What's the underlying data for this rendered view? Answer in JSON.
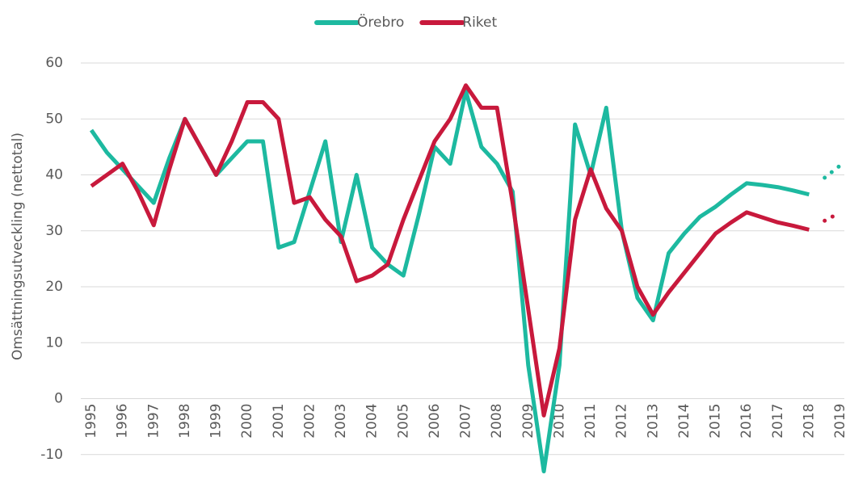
{
  "chart_data": {
    "type": "line",
    "y_label": "Omsättningsutveckling (nettotal)",
    "categories": [
      "1995",
      null,
      "1996",
      null,
      "1997",
      null,
      "1998",
      null,
      "1999",
      null,
      "2000",
      null,
      "2001",
      null,
      "2002",
      null,
      "2003",
      null,
      "2004",
      null,
      "2005",
      null,
      "2006",
      null,
      "2007",
      null,
      "2008",
      null,
      "2009",
      null,
      "2010",
      null,
      "2011",
      null,
      "2012",
      null,
      "2013",
      null,
      "2014",
      null,
      "2015",
      null,
      "2016",
      null,
      "2017",
      null,
      "2018",
      null,
      "2019"
    ],
    "series": [
      {
        "name": "Örebro",
        "color": "#1db9a0",
        "values": [
          48,
          44,
          41,
          38,
          35,
          43,
          50,
          45,
          40,
          43,
          46,
          46,
          27,
          28,
          37,
          46,
          28,
          40,
          27,
          24,
          22,
          33,
          45,
          42,
          55,
          45,
          42,
          37,
          6,
          -13,
          6,
          49,
          40,
          52,
          30,
          18,
          14,
          26,
          29.5,
          32.5,
          34.3,
          36.5,
          38.5,
          38.2,
          37.8,
          37.2,
          36.5,
          null,
          null
        ],
        "forecast": [
          null,
          null,
          null,
          null,
          null,
          null,
          null,
          null,
          null,
          null,
          null,
          null,
          null,
          null,
          null,
          null,
          null,
          null,
          null,
          null,
          null,
          null,
          null,
          null,
          null,
          null,
          null,
          null,
          null,
          null,
          null,
          null,
          null,
          null,
          null,
          null,
          null,
          null,
          null,
          null,
          null,
          null,
          null,
          null,
          null,
          null,
          null,
          39.5,
          41.7
        ]
      },
      {
        "name": "Riket",
        "color": "#c8193c",
        "values": [
          38,
          40,
          42,
          37,
          31,
          41,
          50,
          45,
          40,
          46,
          53,
          53,
          50,
          35,
          36,
          32,
          29,
          21,
          22,
          24,
          32,
          39,
          46,
          50,
          56,
          52,
          52,
          35,
          16,
          -3,
          9,
          32,
          41,
          34,
          30,
          20,
          15,
          19,
          22.5,
          26,
          29.5,
          31.5,
          33.3,
          32.4,
          31.5,
          30.9,
          30.2,
          null,
          null
        ],
        "forecast": [
          null,
          null,
          null,
          null,
          null,
          null,
          null,
          null,
          null,
          null,
          null,
          null,
          null,
          null,
          null,
          null,
          null,
          null,
          null,
          null,
          null,
          null,
          null,
          null,
          null,
          null,
          null,
          null,
          null,
          null,
          null,
          null,
          null,
          null,
          null,
          null,
          null,
          null,
          null,
          null,
          null,
          null,
          null,
          null,
          null,
          null,
          null,
          31.8,
          33.3
        ]
      }
    ],
    "ylim": [
      -20,
      60
    ],
    "yticks": [
      -20,
      -10,
      0,
      10,
      20,
      30,
      40,
      50,
      60
    ],
    "grid": true,
    "legend": "top"
  }
}
